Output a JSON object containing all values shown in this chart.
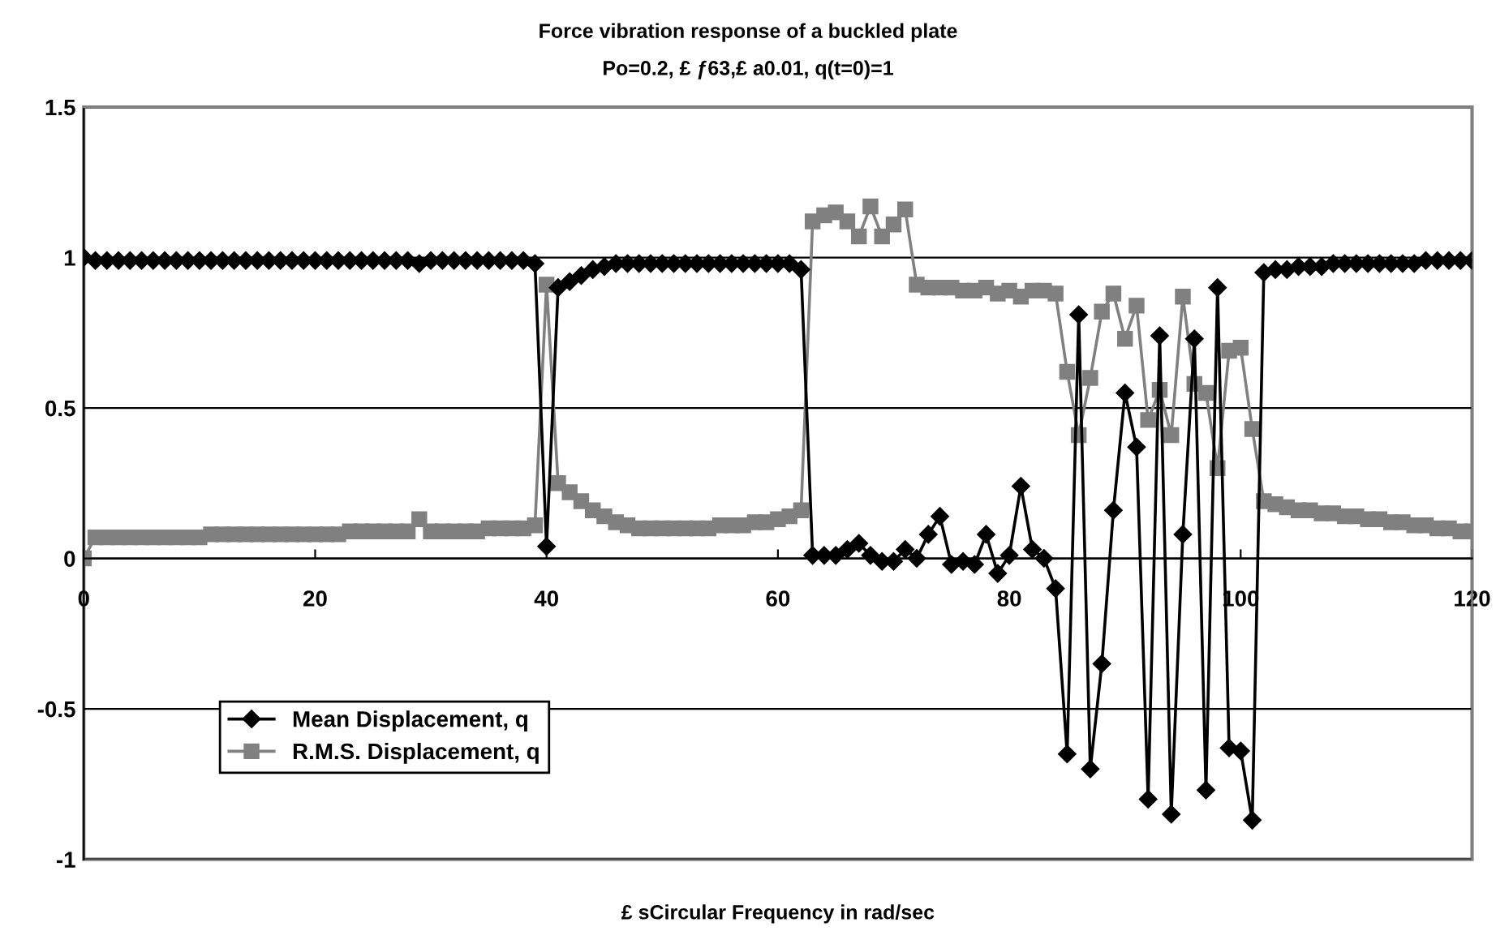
{
  "chart_data": {
    "type": "line",
    "title": "Force vibration response of a buckled plate",
    "subtitle": "Po=0.2, £ ƒ63,£ a0.01, q(t=0)=1",
    "xlabel": "£ sCircular Frequency in rad/sec",
    "x": [
      0,
      1,
      2,
      3,
      4,
      5,
      6,
      7,
      8,
      9,
      10,
      11,
      12,
      13,
      14,
      15,
      16,
      17,
      18,
      19,
      20,
      21,
      22,
      23,
      24,
      25,
      26,
      27,
      28,
      29,
      30,
      31,
      32,
      33,
      34,
      35,
      36,
      37,
      38,
      39,
      40,
      41,
      42,
      43,
      44,
      45,
      46,
      47,
      48,
      49,
      50,
      51,
      52,
      53,
      54,
      55,
      56,
      57,
      58,
      59,
      60,
      61,
      62,
      63,
      64,
      65,
      66,
      67,
      68,
      69,
      70,
      71,
      72,
      73,
      74,
      75,
      76,
      77,
      78,
      79,
      80,
      81,
      82,
      83,
      84,
      85,
      86,
      87,
      88,
      89,
      90,
      91,
      92,
      93,
      94,
      95,
      96,
      97,
      98,
      99,
      100,
      101,
      102,
      103,
      104,
      105,
      106,
      107,
      108,
      109,
      110,
      111,
      112,
      113,
      114,
      115,
      116,
      117,
      118,
      119,
      120
    ],
    "series": [
      {
        "name": "Mean Displacement, q",
        "color": "#000000",
        "marker": "diamond",
        "values": [
          1,
          0.99,
          0.99,
          0.99,
          0.99,
          0.99,
          0.99,
          0.99,
          0.99,
          0.99,
          0.99,
          0.99,
          0.99,
          0.99,
          0.99,
          0.99,
          0.99,
          0.99,
          0.99,
          0.99,
          0.99,
          0.99,
          0.99,
          0.99,
          0.99,
          0.99,
          0.99,
          0.99,
          0.99,
          0.98,
          0.99,
          0.99,
          0.99,
          0.99,
          0.99,
          0.99,
          0.99,
          0.99,
          0.99,
          0.98,
          0.04,
          0.9,
          0.92,
          0.94,
          0.96,
          0.97,
          0.98,
          0.98,
          0.98,
          0.98,
          0.98,
          0.98,
          0.98,
          0.98,
          0.98,
          0.98,
          0.98,
          0.98,
          0.98,
          0.98,
          0.98,
          0.98,
          0.96,
          0.01,
          0.01,
          0.01,
          0.03,
          0.05,
          0.01,
          -0.01,
          -0.01,
          0.03,
          0.0,
          0.08,
          0.14,
          -0.02,
          -0.01,
          -0.02,
          0.08,
          -0.05,
          0.01,
          0.24,
          0.03,
          0.0,
          -0.1,
          -0.65,
          0.81,
          -0.7,
          -0.35,
          0.16,
          0.55,
          0.37,
          -0.8,
          0.74,
          -0.85,
          0.08,
          0.73,
          -0.77,
          0.9,
          -0.63,
          -0.64,
          -0.87,
          0.95,
          0.96,
          0.96,
          0.97,
          0.97,
          0.97,
          0.98,
          0.98,
          0.98,
          0.98,
          0.98,
          0.98,
          0.98,
          0.98,
          0.99,
          0.99,
          0.99,
          0.99,
          0.99
        ]
      },
      {
        "name": "R.M.S. Displacement, q",
        "color": "#808080",
        "marker": "square",
        "values": [
          0,
          0.07,
          0.07,
          0.07,
          0.07,
          0.07,
          0.07,
          0.07,
          0.07,
          0.07,
          0.07,
          0.08,
          0.08,
          0.08,
          0.08,
          0.08,
          0.08,
          0.08,
          0.08,
          0.08,
          0.08,
          0.08,
          0.08,
          0.09,
          0.09,
          0.09,
          0.09,
          0.09,
          0.09,
          0.13,
          0.09,
          0.09,
          0.09,
          0.09,
          0.09,
          0.1,
          0.1,
          0.1,
          0.1,
          0.11,
          0.91,
          0.25,
          0.22,
          0.19,
          0.16,
          0.14,
          0.12,
          0.11,
          0.1,
          0.1,
          0.1,
          0.1,
          0.1,
          0.1,
          0.1,
          0.11,
          0.11,
          0.11,
          0.12,
          0.12,
          0.13,
          0.14,
          0.16,
          1.12,
          1.14,
          1.15,
          1.12,
          1.07,
          1.17,
          1.07,
          1.11,
          1.16,
          0.91,
          0.9,
          0.9,
          0.9,
          0.89,
          0.89,
          0.9,
          0.88,
          0.89,
          0.87,
          0.89,
          0.89,
          0.88,
          0.62,
          0.41,
          0.6,
          0.82,
          0.88,
          0.73,
          0.84,
          0.46,
          0.56,
          0.41,
          0.87,
          0.58,
          0.55,
          0.3,
          0.69,
          0.7,
          0.43,
          0.19,
          0.18,
          0.17,
          0.16,
          0.16,
          0.15,
          0.15,
          0.14,
          0.14,
          0.13,
          0.13,
          0.12,
          0.12,
          0.11,
          0.11,
          0.1,
          0.1,
          0.09,
          0.09
        ]
      }
    ],
    "xlim": [
      0,
      120
    ],
    "xticks": [
      0,
      20,
      40,
      60,
      80,
      100,
      120
    ],
    "ylim": [
      -1,
      1.5
    ],
    "yticks": [
      {
        "value": -1,
        "label": "-1"
      },
      {
        "value": -0.5,
        "label": "-0.5"
      },
      0,
      0.5,
      1,
      1.5
    ],
    "grid": "y",
    "legend": "bottom left",
    "line_style": "solid"
  }
}
